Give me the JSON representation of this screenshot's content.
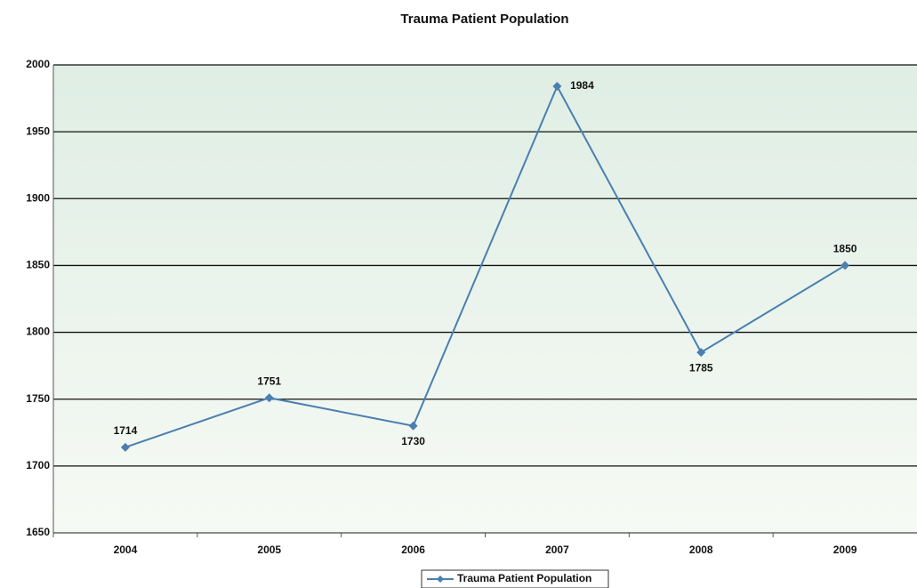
{
  "chart_data": {
    "type": "line",
    "title": "Trauma Patient Population",
    "categories": [
      "2004",
      "2005",
      "2006",
      "2007",
      "2008",
      "2009"
    ],
    "series": [
      {
        "name": "Trauma Patient Population",
        "color": "#4a7fb0",
        "values": [
          1714,
          1751,
          1730,
          1984,
          1785,
          1850
        ]
      }
    ],
    "ylim": [
      1650,
      2000
    ],
    "yticks": [
      1650,
      1700,
      1750,
      1800,
      1850,
      1900,
      1950,
      2000
    ],
    "grid": true
  }
}
